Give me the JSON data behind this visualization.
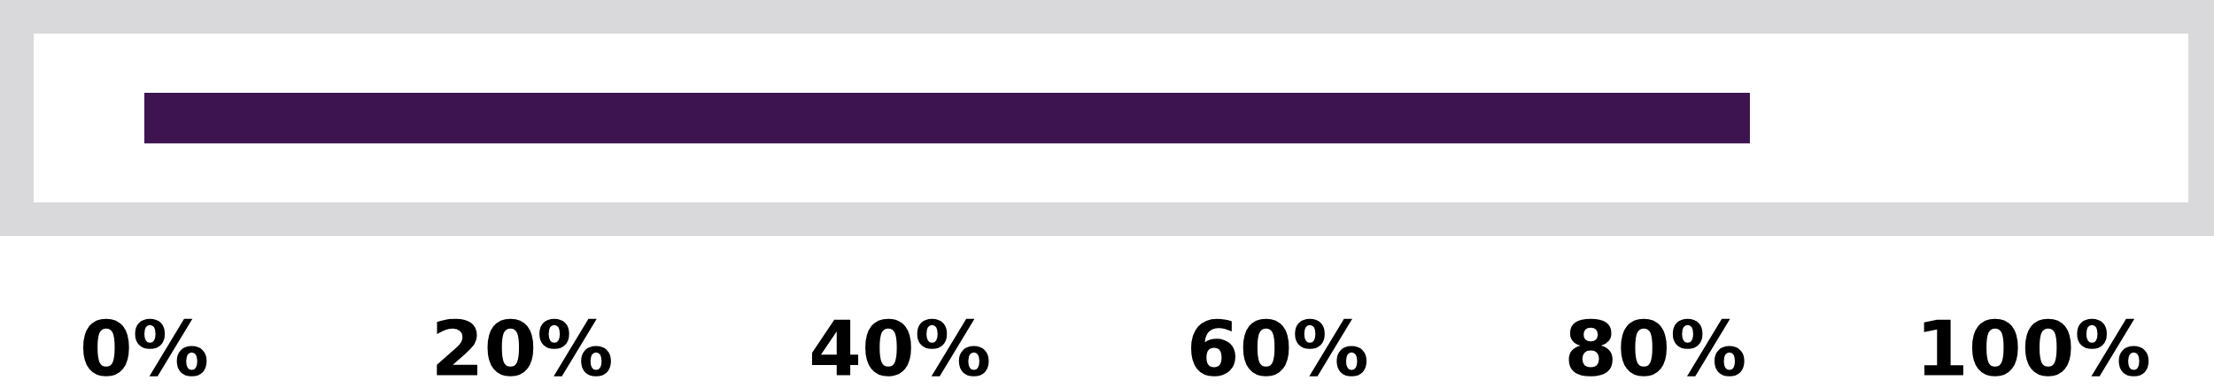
{
  "chart_data": {
    "type": "bar",
    "orientation": "horizontal",
    "categories": [
      null
    ],
    "values": [
      85
    ],
    "color": "#3d1450",
    "xlim": [
      -6.75,
      109.1
    ],
    "xticks": [
      {
        "value": 0,
        "label": "0%"
      },
      {
        "value": 20,
        "label": "20%"
      },
      {
        "value": 40,
        "label": "40%"
      },
      {
        "value": 60,
        "label": "60%"
      },
      {
        "value": 80,
        "label": "80%"
      },
      {
        "value": 100,
        "label": "100%"
      }
    ],
    "grid": false
  }
}
